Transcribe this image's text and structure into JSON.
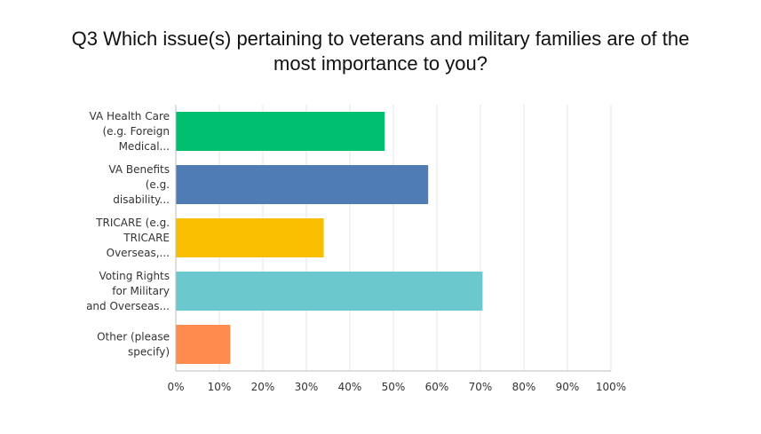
{
  "chart_data": {
    "type": "bar",
    "orientation": "horizontal",
    "title_lines": [
      "Q3 Which issue(s) pertaining to veterans and military families are of the",
      "most importance to you?"
    ],
    "categories": [
      [
        "VA Health Care",
        "(e.g. Foreign",
        "Medical..."
      ],
      [
        "VA Benefits",
        "(e.g.",
        "disability..."
      ],
      [
        "TRICARE (e.g.",
        "TRICARE",
        "Overseas,..."
      ],
      [
        "Voting Rights",
        "for Military",
        "and Overseas..."
      ],
      [
        "Other (please",
        "specify)"
      ]
    ],
    "values": [
      48,
      58,
      34,
      70.5,
      12.5
    ],
    "colors": [
      "#00bf6f",
      "#507cb6",
      "#f9be00",
      "#6bc8cd",
      "#ff8b4f"
    ],
    "xlim": [
      0,
      100
    ],
    "ticks": [
      "0%",
      "10%",
      "20%",
      "30%",
      "40%",
      "50%",
      "60%",
      "70%",
      "80%",
      "90%",
      "100%"
    ],
    "grid": true
  }
}
